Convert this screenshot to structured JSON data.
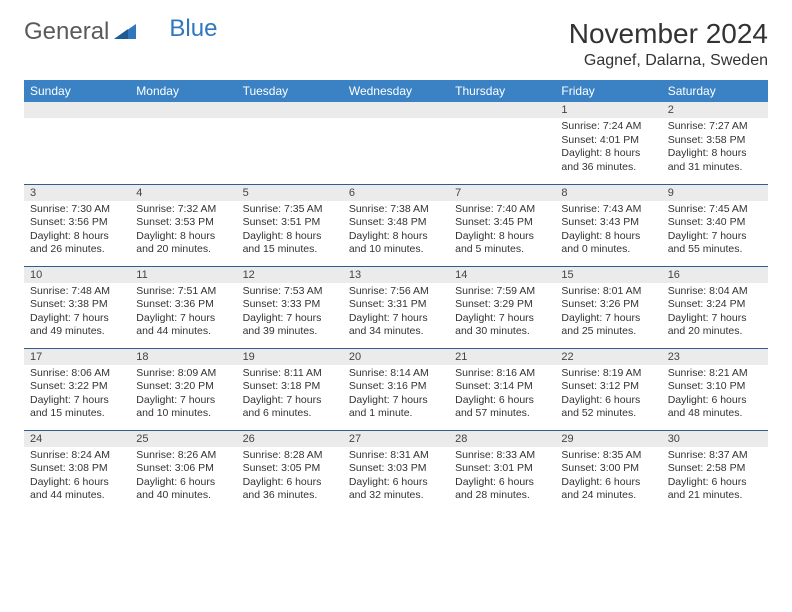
{
  "logo": {
    "word1": "General",
    "word2": "Blue"
  },
  "title": "November 2024",
  "location": "Gagnef, Dalarna, Sweden",
  "day_headers": [
    "Sunday",
    "Monday",
    "Tuesday",
    "Wednesday",
    "Thursday",
    "Friday",
    "Saturday"
  ],
  "colors": {
    "header_bg": "#3a82c4",
    "header_text": "#ffffff",
    "daynum_bg": "#ebebeb",
    "cell_border": "#2f5e8e",
    "logo_gray": "#5a5a5a",
    "logo_blue": "#2f78bf"
  },
  "weeks": [
    [
      null,
      null,
      null,
      null,
      null,
      {
        "n": "1",
        "sunrise": "Sunrise: 7:24 AM",
        "sunset": "Sunset: 4:01 PM",
        "daylight": "Daylight: 8 hours and 36 minutes."
      },
      {
        "n": "2",
        "sunrise": "Sunrise: 7:27 AM",
        "sunset": "Sunset: 3:58 PM",
        "daylight": "Daylight: 8 hours and 31 minutes."
      }
    ],
    [
      {
        "n": "3",
        "sunrise": "Sunrise: 7:30 AM",
        "sunset": "Sunset: 3:56 PM",
        "daylight": "Daylight: 8 hours and 26 minutes."
      },
      {
        "n": "4",
        "sunrise": "Sunrise: 7:32 AM",
        "sunset": "Sunset: 3:53 PM",
        "daylight": "Daylight: 8 hours and 20 minutes."
      },
      {
        "n": "5",
        "sunrise": "Sunrise: 7:35 AM",
        "sunset": "Sunset: 3:51 PM",
        "daylight": "Daylight: 8 hours and 15 minutes."
      },
      {
        "n": "6",
        "sunrise": "Sunrise: 7:38 AM",
        "sunset": "Sunset: 3:48 PM",
        "daylight": "Daylight: 8 hours and 10 minutes."
      },
      {
        "n": "7",
        "sunrise": "Sunrise: 7:40 AM",
        "sunset": "Sunset: 3:45 PM",
        "daylight": "Daylight: 8 hours and 5 minutes."
      },
      {
        "n": "8",
        "sunrise": "Sunrise: 7:43 AM",
        "sunset": "Sunset: 3:43 PM",
        "daylight": "Daylight: 8 hours and 0 minutes."
      },
      {
        "n": "9",
        "sunrise": "Sunrise: 7:45 AM",
        "sunset": "Sunset: 3:40 PM",
        "daylight": "Daylight: 7 hours and 55 minutes."
      }
    ],
    [
      {
        "n": "10",
        "sunrise": "Sunrise: 7:48 AM",
        "sunset": "Sunset: 3:38 PM",
        "daylight": "Daylight: 7 hours and 49 minutes."
      },
      {
        "n": "11",
        "sunrise": "Sunrise: 7:51 AM",
        "sunset": "Sunset: 3:36 PM",
        "daylight": "Daylight: 7 hours and 44 minutes."
      },
      {
        "n": "12",
        "sunrise": "Sunrise: 7:53 AM",
        "sunset": "Sunset: 3:33 PM",
        "daylight": "Daylight: 7 hours and 39 minutes."
      },
      {
        "n": "13",
        "sunrise": "Sunrise: 7:56 AM",
        "sunset": "Sunset: 3:31 PM",
        "daylight": "Daylight: 7 hours and 34 minutes."
      },
      {
        "n": "14",
        "sunrise": "Sunrise: 7:59 AM",
        "sunset": "Sunset: 3:29 PM",
        "daylight": "Daylight: 7 hours and 30 minutes."
      },
      {
        "n": "15",
        "sunrise": "Sunrise: 8:01 AM",
        "sunset": "Sunset: 3:26 PM",
        "daylight": "Daylight: 7 hours and 25 minutes."
      },
      {
        "n": "16",
        "sunrise": "Sunrise: 8:04 AM",
        "sunset": "Sunset: 3:24 PM",
        "daylight": "Daylight: 7 hours and 20 minutes."
      }
    ],
    [
      {
        "n": "17",
        "sunrise": "Sunrise: 8:06 AM",
        "sunset": "Sunset: 3:22 PM",
        "daylight": "Daylight: 7 hours and 15 minutes."
      },
      {
        "n": "18",
        "sunrise": "Sunrise: 8:09 AM",
        "sunset": "Sunset: 3:20 PM",
        "daylight": "Daylight: 7 hours and 10 minutes."
      },
      {
        "n": "19",
        "sunrise": "Sunrise: 8:11 AM",
        "sunset": "Sunset: 3:18 PM",
        "daylight": "Daylight: 7 hours and 6 minutes."
      },
      {
        "n": "20",
        "sunrise": "Sunrise: 8:14 AM",
        "sunset": "Sunset: 3:16 PM",
        "daylight": "Daylight: 7 hours and 1 minute."
      },
      {
        "n": "21",
        "sunrise": "Sunrise: 8:16 AM",
        "sunset": "Sunset: 3:14 PM",
        "daylight": "Daylight: 6 hours and 57 minutes."
      },
      {
        "n": "22",
        "sunrise": "Sunrise: 8:19 AM",
        "sunset": "Sunset: 3:12 PM",
        "daylight": "Daylight: 6 hours and 52 minutes."
      },
      {
        "n": "23",
        "sunrise": "Sunrise: 8:21 AM",
        "sunset": "Sunset: 3:10 PM",
        "daylight": "Daylight: 6 hours and 48 minutes."
      }
    ],
    [
      {
        "n": "24",
        "sunrise": "Sunrise: 8:24 AM",
        "sunset": "Sunset: 3:08 PM",
        "daylight": "Daylight: 6 hours and 44 minutes."
      },
      {
        "n": "25",
        "sunrise": "Sunrise: 8:26 AM",
        "sunset": "Sunset: 3:06 PM",
        "daylight": "Daylight: 6 hours and 40 minutes."
      },
      {
        "n": "26",
        "sunrise": "Sunrise: 8:28 AM",
        "sunset": "Sunset: 3:05 PM",
        "daylight": "Daylight: 6 hours and 36 minutes."
      },
      {
        "n": "27",
        "sunrise": "Sunrise: 8:31 AM",
        "sunset": "Sunset: 3:03 PM",
        "daylight": "Daylight: 6 hours and 32 minutes."
      },
      {
        "n": "28",
        "sunrise": "Sunrise: 8:33 AM",
        "sunset": "Sunset: 3:01 PM",
        "daylight": "Daylight: 6 hours and 28 minutes."
      },
      {
        "n": "29",
        "sunrise": "Sunrise: 8:35 AM",
        "sunset": "Sunset: 3:00 PM",
        "daylight": "Daylight: 6 hours and 24 minutes."
      },
      {
        "n": "30",
        "sunrise": "Sunrise: 8:37 AM",
        "sunset": "Sunset: 2:58 PM",
        "daylight": "Daylight: 6 hours and 21 minutes."
      }
    ]
  ]
}
